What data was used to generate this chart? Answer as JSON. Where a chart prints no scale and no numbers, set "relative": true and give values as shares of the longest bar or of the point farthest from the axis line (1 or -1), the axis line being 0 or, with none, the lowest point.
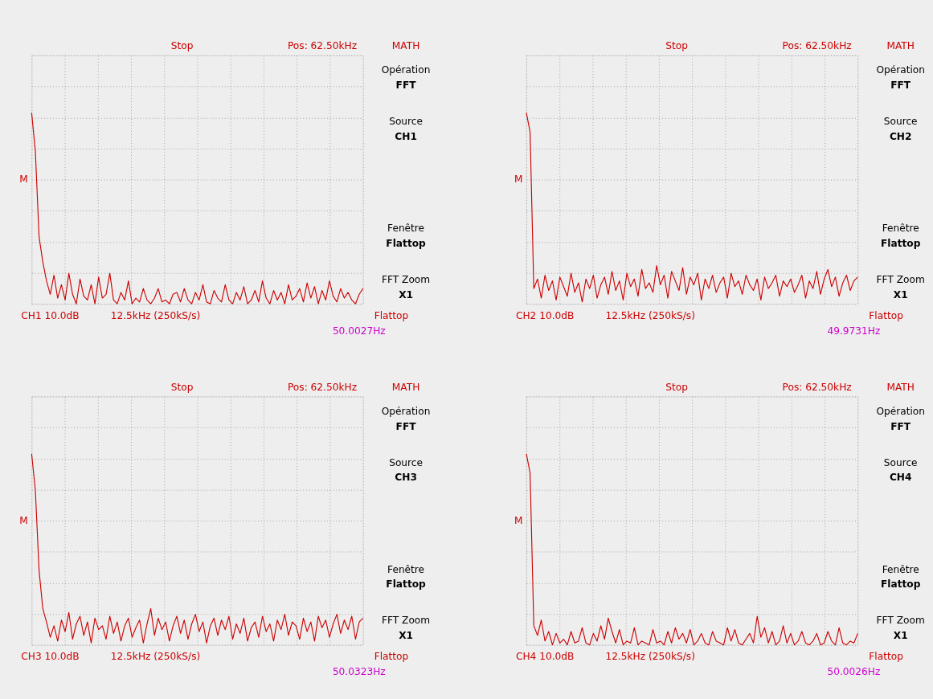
{
  "chart_data": [
    {
      "type": "line",
      "relative": true,
      "grid": true,
      "tick_labels": false,
      "categories": [
        null,
        null,
        null,
        null,
        null,
        null,
        null,
        null,
        null,
        null,
        null,
        null,
        null,
        null,
        null,
        null,
        null,
        null,
        null,
        null,
        null,
        null,
        null,
        null,
        null,
        null,
        null,
        null,
        null,
        null,
        null,
        null,
        null,
        null,
        null,
        null,
        null,
        null,
        null,
        null,
        null,
        null,
        null,
        null,
        null,
        null,
        null,
        null,
        null,
        null,
        null,
        null,
        null,
        null,
        null,
        null,
        null,
        null,
        null,
        null,
        null,
        null,
        null,
        null,
        null,
        null,
        null,
        null,
        null,
        null,
        null,
        null,
        null,
        null,
        null,
        null,
        null,
        null,
        null,
        null,
        null,
        null,
        null,
        null,
        null,
        null,
        null,
        null,
        null,
        null
      ],
      "series": [
        {
          "color": "#cc0000",
          "values": [
            1,
            0.8,
            0.35,
            0.22,
            0.12,
            0.05,
            0.15,
            0.03,
            0.1,
            0.02,
            0.16,
            0.05,
            0.0,
            0.13,
            0.04,
            0.02,
            0.1,
            0.0,
            0.14,
            0.03,
            0.05,
            0.16,
            0.02,
            0.0,
            0.06,
            0.02,
            0.12,
            0.0,
            0.03,
            0.01,
            0.08,
            0.02,
            0.0,
            0.03,
            0.08,
            0.01,
            0.02,
            0.0,
            0.05,
            0.06,
            0.01,
            0.08,
            0.02,
            0.0,
            0.06,
            0.02,
            0.1,
            0.01,
            0.0,
            0.07,
            0.03,
            0.01,
            0.1,
            0.02,
            0.0,
            0.06,
            0.02,
            0.09,
            0.0,
            0.02,
            0.07,
            0.01,
            0.12,
            0.03,
            0.0,
            0.07,
            0.02,
            0.06,
            0.0,
            0.1,
            0.02,
            0.04,
            0.08,
            0.01,
            0.11,
            0.03,
            0.09,
            0.0,
            0.07,
            0.02,
            0.12,
            0.04,
            0.01,
            0.08,
            0.03,
            0.06,
            0.02,
            0.0,
            0.05,
            0.08
          ]
        }
      ],
      "annotations": [
        "Stop",
        "Pos: 62.50kHz",
        "MATH",
        "Opération",
        "FFT",
        "Source",
        "CH1",
        "Fenêtre",
        "Flattop",
        "FFT Zoom",
        "X1",
        "CH1 10.0dB",
        "12.5kHz (250kS/s)",
        "Flattop",
        "50.0027Hz",
        "M"
      ]
    },
    {
      "type": "line",
      "relative": true,
      "grid": true,
      "tick_labels": false,
      "categories": [
        null,
        null,
        null,
        null,
        null,
        null,
        null,
        null,
        null,
        null,
        null,
        null,
        null,
        null,
        null,
        null,
        null,
        null,
        null,
        null,
        null,
        null,
        null,
        null,
        null,
        null,
        null,
        null,
        null,
        null,
        null,
        null,
        null,
        null,
        null,
        null,
        null,
        null,
        null,
        null,
        null,
        null,
        null,
        null,
        null,
        null,
        null,
        null,
        null,
        null,
        null,
        null,
        null,
        null,
        null,
        null,
        null,
        null,
        null,
        null,
        null,
        null,
        null,
        null,
        null,
        null,
        null,
        null,
        null,
        null,
        null,
        null,
        null,
        null,
        null,
        null,
        null,
        null,
        null,
        null,
        null,
        null,
        null,
        null,
        null,
        null,
        null,
        null,
        null,
        null
      ],
      "series": [
        {
          "color": "#cc0000",
          "values": [
            1,
            0.9,
            0.08,
            0.13,
            0.03,
            0.15,
            0.07,
            0.12,
            0.02,
            0.14,
            0.09,
            0.04,
            0.16,
            0.06,
            0.11,
            0.01,
            0.13,
            0.08,
            0.15,
            0.03,
            0.1,
            0.14,
            0.05,
            0.17,
            0.07,
            0.12,
            0.02,
            0.16,
            0.09,
            0.13,
            0.04,
            0.18,
            0.08,
            0.11,
            0.06,
            0.2,
            0.1,
            0.15,
            0.03,
            0.17,
            0.12,
            0.07,
            0.19,
            0.05,
            0.14,
            0.1,
            0.16,
            0.02,
            0.13,
            0.08,
            0.15,
            0.06,
            0.11,
            0.14,
            0.03,
            0.16,
            0.09,
            0.12,
            0.05,
            0.15,
            0.1,
            0.07,
            0.13,
            0.02,
            0.14,
            0.08,
            0.11,
            0.15,
            0.04,
            0.12,
            0.09,
            0.13,
            0.06,
            0.1,
            0.15,
            0.03,
            0.12,
            0.08,
            0.17,
            0.05,
            0.13,
            0.18,
            0.09,
            0.14,
            0.04,
            0.11,
            0.15,
            0.07,
            0.12,
            0.14
          ]
        }
      ],
      "annotations": [
        "Stop",
        "Pos: 62.50kHz",
        "MATH",
        "Opération",
        "FFT",
        "Source",
        "CH2",
        "Fenêtre",
        "Flattop",
        "FFT Zoom",
        "X1",
        "CH2 10.0dB",
        "12.5kHz (250kS/s)",
        "Flattop",
        "49.9731Hz",
        "M"
      ]
    },
    {
      "type": "line",
      "relative": true,
      "grid": true,
      "tick_labels": false,
      "categories": [
        null,
        null,
        null,
        null,
        null,
        null,
        null,
        null,
        null,
        null,
        null,
        null,
        null,
        null,
        null,
        null,
        null,
        null,
        null,
        null,
        null,
        null,
        null,
        null,
        null,
        null,
        null,
        null,
        null,
        null,
        null,
        null,
        null,
        null,
        null,
        null,
        null,
        null,
        null,
        null,
        null,
        null,
        null,
        null,
        null,
        null,
        null,
        null,
        null,
        null,
        null,
        null,
        null,
        null,
        null,
        null,
        null,
        null,
        null,
        null,
        null,
        null,
        null,
        null,
        null,
        null,
        null,
        null,
        null,
        null,
        null,
        null,
        null,
        null,
        null,
        null,
        null,
        null,
        null,
        null,
        null,
        null,
        null,
        null,
        null,
        null,
        null,
        null,
        null,
        null
      ],
      "series": [
        {
          "color": "#cc0000",
          "values": [
            1,
            0.81,
            0.39,
            0.19,
            0.12,
            0.04,
            0.1,
            0.02,
            0.13,
            0.07,
            0.17,
            0.03,
            0.11,
            0.15,
            0.05,
            0.12,
            0.01,
            0.14,
            0.08,
            0.1,
            0.03,
            0.15,
            0.06,
            0.12,
            0.02,
            0.1,
            0.14,
            0.04,
            0.09,
            0.13,
            0.01,
            0.11,
            0.19,
            0.05,
            0.14,
            0.08,
            0.12,
            0.02,
            0.1,
            0.15,
            0.06,
            0.13,
            0.03,
            0.11,
            0.16,
            0.07,
            0.12,
            0.01,
            0.1,
            0.14,
            0.05,
            0.13,
            0.08,
            0.15,
            0.03,
            0.11,
            0.06,
            0.14,
            0.02,
            0.09,
            0.12,
            0.04,
            0.15,
            0.07,
            0.11,
            0.02,
            0.13,
            0.08,
            0.16,
            0.05,
            0.12,
            0.1,
            0.03,
            0.14,
            0.07,
            0.12,
            0.02,
            0.15,
            0.09,
            0.13,
            0.04,
            0.11,
            0.16,
            0.06,
            0.13,
            0.08,
            0.15,
            0.03,
            0.12,
            0.14
          ]
        }
      ],
      "annotations": [
        "Stop",
        "Pos: 62.50kHz",
        "MATH",
        "Opération",
        "FFT",
        "Source",
        "CH3",
        "Fenêtre",
        "Flattop",
        "FFT Zoom",
        "X1",
        "CH3 10.0dB",
        "12.5kHz (250kS/s)",
        "Flattop",
        "50.0323Hz",
        "M"
      ]
    },
    {
      "type": "line",
      "relative": true,
      "grid": true,
      "tick_labels": false,
      "categories": [
        null,
        null,
        null,
        null,
        null,
        null,
        null,
        null,
        null,
        null,
        null,
        null,
        null,
        null,
        null,
        null,
        null,
        null,
        null,
        null,
        null,
        null,
        null,
        null,
        null,
        null,
        null,
        null,
        null,
        null,
        null,
        null,
        null,
        null,
        null,
        null,
        null,
        null,
        null,
        null,
        null,
        null,
        null,
        null,
        null,
        null,
        null,
        null,
        null,
        null,
        null,
        null,
        null,
        null,
        null,
        null,
        null,
        null,
        null,
        null,
        null,
        null,
        null,
        null,
        null,
        null,
        null,
        null,
        null,
        null,
        null,
        null,
        null,
        null,
        null,
        null,
        null,
        null,
        null,
        null,
        null,
        null,
        null,
        null,
        null,
        null,
        null,
        null,
        null,
        null
      ],
      "series": [
        {
          "color": "#cc0000",
          "values": [
            1,
            0.9,
            0.1,
            0.05,
            0.13,
            0.02,
            0.07,
            0.0,
            0.06,
            0.01,
            0.03,
            0.0,
            0.07,
            0.01,
            0.02,
            0.09,
            0.01,
            0.0,
            0.06,
            0.02,
            0.1,
            0.03,
            0.14,
            0.07,
            0.01,
            0.08,
            0.0,
            0.02,
            0.01,
            0.09,
            0.0,
            0.02,
            0.01,
            0.0,
            0.08,
            0.01,
            0.02,
            0.0,
            0.07,
            0.01,
            0.09,
            0.03,
            0.06,
            0.01,
            0.08,
            0.0,
            0.02,
            0.06,
            0.01,
            0.0,
            0.07,
            0.02,
            0.01,
            0.0,
            0.09,
            0.02,
            0.08,
            0.01,
            0.0,
            0.03,
            0.06,
            0.01,
            0.15,
            0.04,
            0.09,
            0.01,
            0.07,
            0.0,
            0.02,
            0.1,
            0.01,
            0.06,
            0.0,
            0.02,
            0.07,
            0.01,
            0.0,
            0.02,
            0.06,
            0.0,
            0.01,
            0.07,
            0.02,
            0.0,
            0.09,
            0.01,
            0.0,
            0.02,
            0.01,
            0.06
          ]
        }
      ],
      "annotations": [
        "Stop",
        "Pos: 62.50kHz",
        "MATH",
        "Opération",
        "FFT",
        "Source",
        "CH4",
        "Fenêtre",
        "Flattop",
        "FFT Zoom",
        "X1",
        "CH4 10.0dB",
        "12.5kHz (250kS/s)",
        "Flattop",
        "50.0026Hz",
        "M"
      ]
    }
  ]
}
